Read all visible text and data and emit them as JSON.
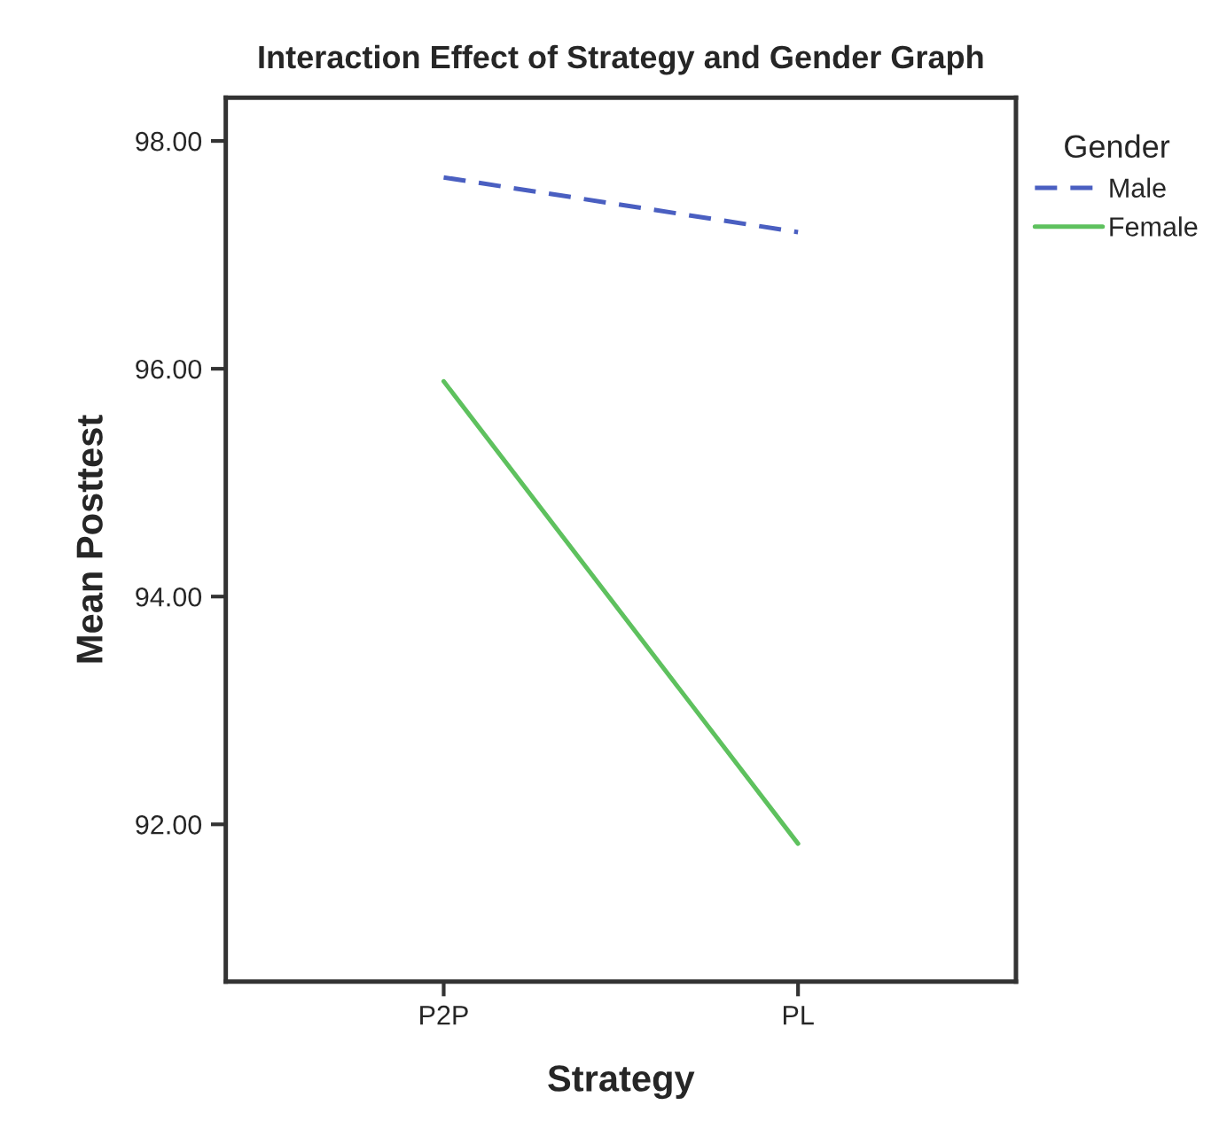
{
  "chart_data": {
    "type": "line",
    "title": "Interaction Effect of Strategy and Gender Graph",
    "xlabel": "Strategy",
    "ylabel": "Mean Posttest",
    "legend_title": "Gender",
    "categories": [
      "P2P",
      "PL"
    ],
    "series": [
      {
        "name": "Male",
        "color": "#4a5fc1",
        "values": [
          97.68,
          97.2
        ],
        "line_style": "dashed"
      },
      {
        "name": "Female",
        "color": "#5ec15e",
        "values": [
          95.89,
          91.83
        ],
        "line_style": "solid"
      }
    ],
    "ylim": [
      90.62,
      98.38
    ],
    "yticks": [
      {
        "value": 92,
        "label": "92.00"
      },
      {
        "value": 94,
        "label": "94.00"
      },
      {
        "value": 96,
        "label": "96.00"
      },
      {
        "value": 98,
        "label": "98.00"
      }
    ],
    "grid": false,
    "legend": "right",
    "marker": "none"
  }
}
